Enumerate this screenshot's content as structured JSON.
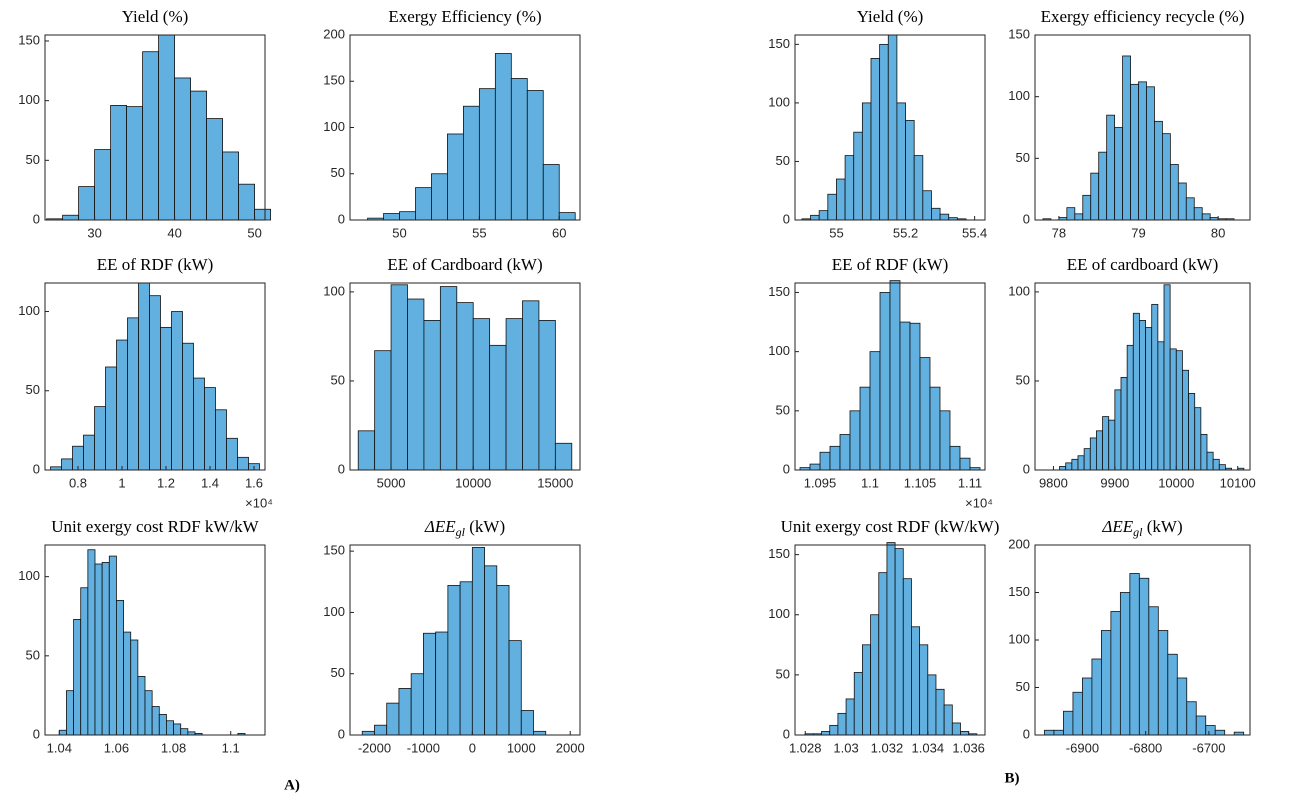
{
  "panel_labels": [
    "A)",
    "B)"
  ],
  "chart_data": [
    {
      "type": "histogram",
      "title": "Yield (%)",
      "color": "#62b0e0",
      "bins": [
        24,
        26,
        28,
        30,
        32,
        34,
        36,
        38,
        40,
        42,
        44,
        46,
        48,
        50,
        52
      ],
      "counts": [
        1,
        4,
        28,
        59,
        96,
        95,
        141,
        155,
        119,
        108,
        85,
        57,
        30,
        9
      ],
      "xlim": [
        23.8,
        51.3
      ],
      "xticks": [
        30,
        40,
        50
      ],
      "ylim": [
        0,
        155
      ],
      "yticks": [
        0,
        50,
        100,
        150
      ]
    },
    {
      "type": "histogram",
      "title": "Exergy Efficiency (%)",
      "color": "#62b0e0",
      "bins": [
        48,
        49,
        50,
        51,
        52,
        53,
        54,
        55,
        56,
        57,
        58,
        59,
        60,
        61
      ],
      "counts": [
        2,
        7,
        9,
        35,
        50,
        93,
        123,
        142,
        180,
        153,
        140,
        60,
        8
      ],
      "xlim": [
        46.9,
        61.3
      ],
      "xticks": [
        50,
        55,
        60
      ],
      "ylim": [
        0,
        200
      ],
      "yticks": [
        0,
        50,
        100,
        150,
        200
      ]
    },
    {
      "type": "histogram",
      "title": "EE of RDF (kW)",
      "x_multiplier": "×10⁴",
      "color": "#62b0e0",
      "bins": [
        0.675,
        0.725,
        0.775,
        0.825,
        0.875,
        0.925,
        0.975,
        1.025,
        1.075,
        1.125,
        1.175,
        1.225,
        1.275,
        1.325,
        1.375,
        1.425,
        1.475,
        1.525,
        1.575,
        1.625
      ],
      "counts": [
        2,
        7,
        15,
        22,
        40,
        65,
        82,
        96,
        118,
        110,
        90,
        100,
        80,
        58,
        52,
        38,
        20,
        8,
        4
      ],
      "xlim": [
        0.65,
        1.65
      ],
      "xticks": [
        0.8,
        1,
        1.2,
        1.4,
        1.6
      ],
      "ylim": [
        0,
        118
      ],
      "yticks": [
        0,
        50,
        100
      ]
    },
    {
      "type": "histogram",
      "title": "EE of Cardboard (kW)",
      "color": "#62b0e0",
      "bins": [
        3000,
        4000,
        5000,
        6000,
        7000,
        8000,
        9000,
        10000,
        11000,
        12000,
        13000,
        14000,
        15000,
        16000
      ],
      "counts": [
        22,
        67,
        104,
        96,
        84,
        103,
        94,
        85,
        70,
        85,
        95,
        84,
        15
      ],
      "xlim": [
        2500,
        16500
      ],
      "xticks": [
        5000,
        10000,
        15000
      ],
      "ylim": [
        0,
        105
      ],
      "yticks": [
        0,
        50,
        100
      ]
    },
    {
      "type": "histogram",
      "title": "Unit exergy cost RDF kW/kW",
      "color": "#62b0e0",
      "bins": [
        1.04,
        1.0425,
        1.045,
        1.0475,
        1.05,
        1.0525,
        1.055,
        1.0575,
        1.06,
        1.0625,
        1.065,
        1.0675,
        1.07,
        1.0725,
        1.075,
        1.0775,
        1.08,
        1.0825,
        1.085,
        1.0875,
        1.09,
        1.0925,
        1.095,
        1.0975,
        1.1,
        1.1025,
        1.105
      ],
      "counts": [
        3,
        28,
        73,
        93,
        117,
        108,
        109,
        113,
        85,
        65,
        60,
        37,
        28,
        18,
        13,
        9,
        7,
        4,
        2,
        1,
        0,
        0,
        0,
        0,
        0,
        1
      ],
      "xlim": [
        1.035,
        1.112
      ],
      "xticks": [
        1.04,
        1.06,
        1.08,
        1.1
      ],
      "ylim": [
        0,
        120
      ],
      "yticks": [
        0,
        50,
        100
      ]
    },
    {
      "type": "histogram",
      "title": "ΔEE",
      "title_subscript": "gl",
      "title_suffix": " (kW)",
      "color": "#62b0e0",
      "bins": [
        -2250,
        -2000,
        -1750,
        -1500,
        -1250,
        -1000,
        -750,
        -500,
        -250,
        0,
        250,
        500,
        750,
        1000,
        1250,
        1500,
        1750
      ],
      "counts": [
        3,
        8,
        26,
        38,
        50,
        83,
        84,
        122,
        125,
        153,
        138,
        122,
        77,
        20,
        3,
        0
      ],
      "xlim": [
        -2500,
        2200
      ],
      "xticks": [
        -2000,
        -1000,
        0,
        1000,
        2000
      ],
      "ylim": [
        0,
        155
      ],
      "yticks": [
        0,
        50,
        100,
        150
      ]
    },
    {
      "type": "histogram",
      "title": "Yield (%)",
      "color": "#62b0e0",
      "bins": [
        54.9,
        54.925,
        54.95,
        54.975,
        55,
        55.025,
        55.05,
        55.075,
        55.1,
        55.125,
        55.15,
        55.175,
        55.2,
        55.225,
        55.25,
        55.275,
        55.3,
        55.325,
        55.35,
        55.375,
        55.4
      ],
      "counts": [
        1,
        4,
        8,
        22,
        35,
        55,
        75,
        100,
        138,
        150,
        158,
        100,
        85,
        55,
        25,
        10,
        5,
        2,
        1,
        0
      ],
      "xlim": [
        54.88,
        55.43
      ],
      "xticks": [
        55,
        55.2,
        55.4
      ],
      "ylim": [
        0,
        158
      ],
      "yticks": [
        0,
        50,
        100,
        150
      ]
    },
    {
      "type": "histogram",
      "title": "Exergy efficiency recycle (%)",
      "color": "#62b0e0",
      "bins": [
        77.8,
        77.9,
        78,
        78.1,
        78.2,
        78.3,
        78.4,
        78.5,
        78.6,
        78.7,
        78.8,
        78.9,
        79,
        79.1,
        79.2,
        79.3,
        79.4,
        79.5,
        79.6,
        79.7,
        79.8,
        79.9,
        80,
        80.1,
        80.2
      ],
      "counts": [
        1,
        0,
        2,
        10,
        5,
        20,
        38,
        55,
        85,
        75,
        133,
        110,
        112,
        108,
        80,
        70,
        45,
        30,
        18,
        10,
        5,
        2,
        1,
        1
      ],
      "xlim": [
        77.7,
        80.4
      ],
      "xticks": [
        78,
        79,
        80
      ],
      "ylim": [
        0,
        150
      ],
      "yticks": [
        0,
        50,
        100,
        150
      ]
    },
    {
      "type": "histogram",
      "title": "EE of RDF (kW)",
      "x_multiplier": "×10⁴",
      "color": "#62b0e0",
      "bins": [
        1.093,
        1.094,
        1.095,
        1.096,
        1.097,
        1.098,
        1.099,
        1.1,
        1.101,
        1.102,
        1.103,
        1.104,
        1.105,
        1.106,
        1.107,
        1.108,
        1.109,
        1.11,
        1.111
      ],
      "counts": [
        2,
        5,
        15,
        20,
        30,
        50,
        70,
        100,
        150,
        160,
        125,
        124,
        95,
        70,
        50,
        20,
        10,
        2
      ],
      "xlim": [
        1.0925,
        1.1115
      ],
      "xticks": [
        1.095,
        1.1,
        1.105,
        1.11
      ],
      "ylim": [
        0,
        158
      ],
      "yticks": [
        0,
        50,
        100,
        150
      ]
    },
    {
      "type": "histogram",
      "title": "EE of cardboard (kW)",
      "color": "#62b0e0",
      "bins": [
        9810,
        9820,
        9830,
        9840,
        9850,
        9860,
        9870,
        9880,
        9890,
        9900,
        9910,
        9920,
        9930,
        9940,
        9950,
        9960,
        9970,
        9980,
        9990,
        10000,
        10010,
        10020,
        10030,
        10040,
        10050,
        10060,
        10070,
        10080,
        10090,
        10100,
        10110
      ],
      "counts": [
        2,
        4,
        6,
        8,
        12,
        18,
        22,
        30,
        28,
        45,
        52,
        70,
        88,
        84,
        80,
        93,
        72,
        104,
        68,
        67,
        56,
        43,
        35,
        20,
        10,
        6,
        3,
        1,
        0,
        1
      ],
      "xlim": [
        9770,
        10120
      ],
      "xticks": [
        9800,
        9900,
        10000,
        10100
      ],
      "ylim": [
        0,
        105
      ],
      "yticks": [
        0,
        50,
        100
      ]
    },
    {
      "type": "histogram",
      "title": "Unit exergy cost RDF (kW/kW)",
      "color": "#62b0e0",
      "bins": [
        1.028,
        1.0284,
        1.0288,
        1.0292,
        1.0296,
        1.03,
        1.0304,
        1.0308,
        1.0312,
        1.0316,
        1.032,
        1.0324,
        1.0328,
        1.0332,
        1.0336,
        1.034,
        1.0344,
        1.0348,
        1.0352,
        1.0356,
        1.036,
        1.0364
      ],
      "counts": [
        1,
        1,
        3,
        8,
        18,
        30,
        52,
        75,
        100,
        135,
        160,
        155,
        130,
        90,
        75,
        50,
        38,
        25,
        10,
        3,
        1
      ],
      "xlim": [
        1.0275,
        1.0368
      ],
      "xticks": [
        1.028,
        1.03,
        1.032,
        1.034,
        1.036
      ],
      "ylim": [
        0,
        158
      ],
      "yticks": [
        0,
        50,
        100,
        150
      ]
    },
    {
      "type": "histogram",
      "title": "ΔEE",
      "title_subscript": "gl",
      "title_suffix": " (kW)",
      "color": "#62b0e0",
      "bins": [
        -6960,
        -6945,
        -6930,
        -6915,
        -6900,
        -6885,
        -6870,
        -6855,
        -6840,
        -6825,
        -6810,
        -6795,
        -6780,
        -6765,
        -6750,
        -6735,
        -6720,
        -6705,
        -6690,
        -6675,
        -6660,
        -6645
      ],
      "counts": [
        5,
        5,
        25,
        45,
        60,
        80,
        110,
        130,
        150,
        170,
        165,
        135,
        110,
        85,
        60,
        35,
        20,
        10,
        5,
        0,
        3
      ],
      "xlim": [
        -6975,
        -6635
      ],
      "xticks": [
        -6900,
        -6800,
        -6700
      ],
      "ylim": [
        0,
        200
      ],
      "yticks": [
        0,
        50,
        100,
        150,
        200
      ]
    }
  ]
}
